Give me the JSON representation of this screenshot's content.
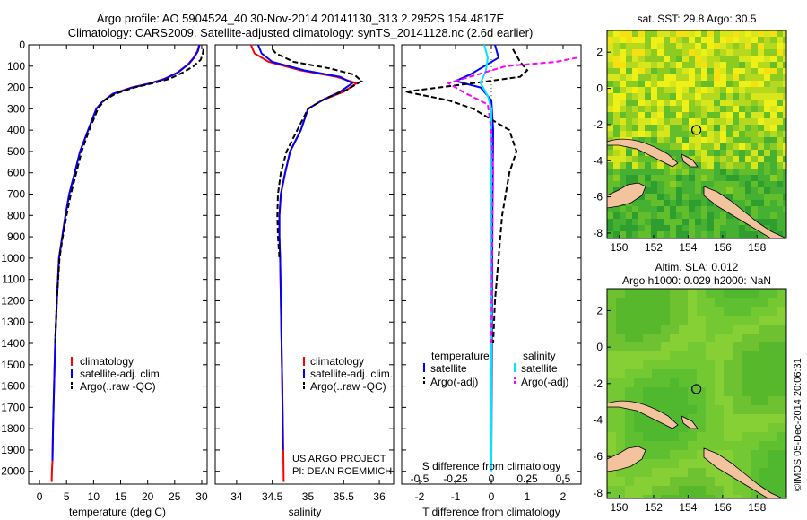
{
  "header": {
    "line1": "Argo profile: AO 5904524_40 30-Nov-2014 20141130_313 2.2952S 154.4817E",
    "line2": "Climatology: CARS2009. Satellite-adjusted climatology: synTS_20141128.nc (2.6d earlier)"
  },
  "side_credit": "©IMOS 05-Dec-2014 20:06:31",
  "project_text": {
    "line1": "US ARGO PROJECT",
    "line2": "PI: DEAN ROEMMICH"
  },
  "chart_data": [
    {
      "id": "temperature",
      "type": "line",
      "xlabel": "temperature (deg C)",
      "ylabel": "",
      "xlim": [
        -2,
        31
      ],
      "ylim": [
        2060,
        0
      ],
      "xticks": [
        0,
        5,
        10,
        15,
        20,
        25,
        30
      ],
      "yticks": [
        0,
        100,
        200,
        300,
        400,
        500,
        600,
        700,
        800,
        900,
        1000,
        1100,
        1200,
        1300,
        1400,
        1500,
        1600,
        1700,
        1800,
        1900,
        2000
      ],
      "legend": {
        "placement": "bottom-left",
        "entries": [
          "climatology",
          "satellite-adj. clim.",
          "Argo(..raw -QC)"
        ]
      },
      "series": [
        {
          "name": "climatology",
          "color": "#ff0000",
          "style": "solid",
          "x": [
            29.5,
            29.2,
            28.5,
            27.5,
            25.5,
            23,
            20.5,
            17,
            13.5,
            11.5,
            10.5,
            9,
            7.5,
            6.5,
            5.5,
            4.8,
            4.2,
            3.6,
            3.2,
            2.9,
            2.7,
            2.5,
            2.4,
            2.3,
            2.25
          ],
          "y": [
            0,
            30,
            60,
            90,
            130,
            160,
            180,
            200,
            230,
            270,
            300,
            400,
            500,
            600,
            700,
            800,
            900,
            1000,
            1200,
            1400,
            1600,
            1800,
            1950,
            2000,
            2050
          ]
        },
        {
          "name": "satellite-adj. clim.",
          "color": "#0000ff",
          "style": "solid",
          "x": [
            29.6,
            29.3,
            28.6,
            27.6,
            25.6,
            23.2,
            20.6,
            17.2,
            13.6,
            11.5,
            10.5,
            9,
            7.5,
            6.5,
            5.5,
            4.8,
            4.2,
            3.6,
            3.2,
            2.9,
            2.7,
            2.5,
            2.4
          ],
          "y": [
            0,
            30,
            60,
            90,
            130,
            160,
            180,
            200,
            230,
            270,
            300,
            400,
            500,
            600,
            700,
            800,
            900,
            1000,
            1200,
            1400,
            1600,
            1800,
            1950
          ]
        },
        {
          "name": "Argo(..raw -QC)",
          "color": "#000000",
          "style": "dashed",
          "x": [
            30.3,
            30.2,
            29.8,
            28.5,
            26.5,
            24,
            21,
            17.5,
            14,
            12,
            10.8,
            9.2,
            7.8,
            6.8,
            5.8,
            5,
            4.3,
            3.7,
            3.2,
            2.9
          ],
          "y": [
            20,
            40,
            70,
            100,
            130,
            160,
            180,
            200,
            230,
            260,
            300,
            400,
            500,
            600,
            700,
            800,
            900,
            1000,
            1200,
            1400
          ]
        }
      ]
    },
    {
      "id": "salinity",
      "type": "line",
      "xlabel": "salinity",
      "ylabel": "",
      "xlim": [
        33.7,
        36.2
      ],
      "ylim": [
        2060,
        0
      ],
      "xticks": [
        34,
        34.5,
        35,
        35.5,
        36
      ],
      "legend": {
        "placement": "bottom-right",
        "entries": [
          "climatology",
          "satellite-adj. clim.",
          "Argo(..raw -QC)"
        ]
      },
      "series": [
        {
          "name": "climatology",
          "color": "#ff0000",
          "style": "solid",
          "x": [
            34.2,
            34.25,
            34.45,
            34.9,
            35.4,
            35.68,
            35.5,
            35.2,
            35.0,
            34.9,
            34.75,
            34.68,
            34.62,
            34.6,
            34.6,
            34.61,
            34.62,
            34.63,
            34.64,
            34.65,
            34.66
          ],
          "y": [
            0,
            40,
            80,
            120,
            150,
            180,
            220,
            260,
            300,
            400,
            500,
            600,
            700,
            800,
            900,
            1000,
            1200,
            1400,
            1600,
            1800,
            2050
          ]
        },
        {
          "name": "satellite-adj. clim.",
          "color": "#0000ff",
          "style": "solid",
          "x": [
            34.3,
            34.35,
            34.5,
            34.95,
            35.45,
            35.62,
            35.45,
            35.2,
            35.0,
            34.9,
            34.75,
            34.68,
            34.62,
            34.6,
            34.6,
            34.61,
            34.62,
            34.63,
            34.64,
            34.65
          ],
          "y": [
            0,
            40,
            80,
            120,
            150,
            180,
            220,
            260,
            300,
            400,
            500,
            600,
            700,
            800,
            900,
            1000,
            1200,
            1400,
            1600,
            1900
          ]
        },
        {
          "name": "Argo(..raw -QC)",
          "color": "#000000",
          "style": "dashed",
          "x": [
            34.5,
            34.55,
            34.8,
            35.3,
            35.65,
            35.75,
            35.55,
            35.25,
            35.0,
            34.85,
            34.7,
            34.62,
            34.58,
            34.57,
            34.58,
            34.6
          ],
          "y": [
            20,
            40,
            80,
            110,
            140,
            170,
            210,
            250,
            300,
            400,
            500,
            600,
            700,
            800,
            900,
            1000
          ]
        }
      ]
    },
    {
      "id": "difference",
      "type": "line",
      "xlabel": "T difference from climatology",
      "xlabel_top": "S difference from climatology",
      "xlim": [
        -2.5,
        2.5
      ],
      "ylim": [
        2060,
        0
      ],
      "xticks": [
        -2,
        -1,
        0,
        1,
        2
      ],
      "xticks_top": [
        -0.5,
        -0.25,
        0,
        0.25,
        0.5
      ],
      "legend": {
        "placement": "bottom",
        "headings": [
          "temperature",
          "salinity"
        ],
        "entries": [
          "satellite",
          "Argo(-adj)",
          "satellite",
          "Argo(-adj)"
        ]
      },
      "series": [
        {
          "name": "satellite",
          "group": "temperature",
          "color": "#0000ff",
          "style": "solid",
          "x": [
            0.1,
            0.2,
            -0.2,
            -0.6,
            -1.0,
            -0.3,
            0,
            0.05,
            0.03,
            0.02,
            0.01,
            0
          ],
          "y": [
            0,
            60,
            100,
            140,
            170,
            200,
            260,
            400,
            800,
            1200,
            1600,
            1950
          ]
        },
        {
          "name": "Argo(-adj)",
          "group": "temperature",
          "color": "#000000",
          "style": "dashed",
          "x": [
            0.6,
            0.8,
            1.0,
            0.8,
            -0.5,
            -2.4,
            -1.2,
            -0.5,
            0.5,
            0.7,
            0.5,
            0.3,
            0.2,
            0.1,
            0.05
          ],
          "y": [
            20,
            80,
            120,
            150,
            180,
            220,
            260,
            300,
            400,
            500,
            600,
            800,
            1000,
            1200,
            1400
          ]
        },
        {
          "name": "satellite",
          "group": "salinity",
          "color": "#00e5ff",
          "style": "solid",
          "x": [
            -0.2,
            -0.1,
            -0.15,
            -0.3,
            -0.1,
            0,
            0,
            0,
            0,
            0
          ],
          "y": [
            0,
            60,
            120,
            180,
            240,
            300,
            600,
            1000,
            1500,
            2000
          ]
        },
        {
          "name": "Argo(-adj)",
          "group": "salinity",
          "color": "#ff00ff",
          "style": "dashed",
          "x": [
            2.4,
            1.8,
            0.4,
            -1.2,
            -0.8,
            -0.1,
            0,
            0.05,
            0.02,
            0
          ],
          "y": [
            60,
            80,
            100,
            180,
            220,
            280,
            400,
            600,
            1000,
            1400
          ]
        }
      ]
    },
    {
      "id": "sst-map",
      "type": "heatmap",
      "title": "sat. SST: 29.8 Argo: 30.5",
      "xlim": [
        149.3,
        159.7
      ],
      "ylim": [
        -8.3,
        3.2
      ],
      "xticks": [
        150,
        152,
        154,
        156,
        158
      ],
      "yticks": [
        2,
        0,
        -2,
        -4,
        -6,
        -8
      ],
      "argo_position": {
        "lon": 154.48,
        "lat": -2.3
      }
    },
    {
      "id": "sla-map",
      "type": "heatmap",
      "title_line1": "Altim. SLA: 0.012",
      "title_line2": "Argo h1000: 0.029 h2000: NaN",
      "xlim": [
        149.3,
        159.7
      ],
      "ylim": [
        -8.3,
        3.2
      ],
      "xticks": [
        150,
        152,
        154,
        156,
        158
      ],
      "yticks": [
        2,
        0,
        -2,
        -4,
        -6,
        -8
      ],
      "argo_position": {
        "lon": 154.48,
        "lat": -2.3
      }
    }
  ]
}
